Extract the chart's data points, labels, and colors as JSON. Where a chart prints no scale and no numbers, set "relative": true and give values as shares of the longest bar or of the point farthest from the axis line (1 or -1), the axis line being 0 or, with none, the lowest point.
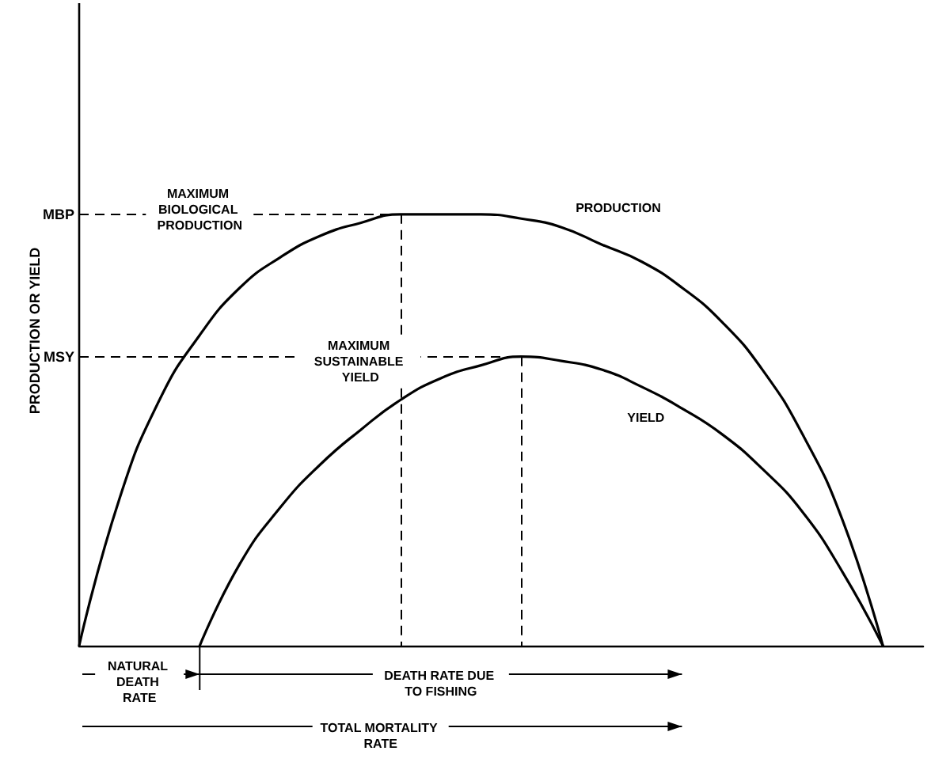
{
  "chart_data": {
    "type": "line",
    "relative": true,
    "ylabel": "PRODUCTION OR YIELD",
    "categories": [
      null,
      null,
      null,
      null,
      null,
      null,
      null,
      null,
      null,
      null,
      null,
      null,
      null,
      null,
      null,
      null,
      null,
      null,
      null,
      null,
      null,
      null
    ],
    "series": [
      {
        "name": "PRODUCTION",
        "color": "#000000",
        "values": [
          0,
          0.34,
          0.57,
          0.72,
          0.83,
          0.9,
          0.95,
          0.98,
          1.0,
          1.0,
          1.0,
          0.99,
          0.97,
          0.93,
          0.89,
          0.83,
          0.75,
          0.64,
          0.49,
          0.29,
          0,
          null
        ]
      },
      {
        "name": "YIELD",
        "color": "#000000",
        "values": [
          null,
          null,
          null,
          0,
          0.19,
          0.32,
          0.42,
          0.5,
          0.57,
          0.62,
          0.65,
          0.67,
          0.66,
          0.64,
          0.6,
          0.55,
          0.49,
          0.41,
          0.31,
          0.17,
          0,
          null
        ]
      }
    ],
    "ref_lines": [
      {
        "axis": "y",
        "value": 1,
        "label": "MBP",
        "line_style": "dashed"
      },
      {
        "axis": "y",
        "value": 0.67,
        "label": "MSY",
        "line_style": "dashed"
      }
    ],
    "annotations": [
      "MAXIMUM BIOLOGICAL PRODUCTION",
      "MAXIMUM SUSTAINABLE YIELD",
      "NATURAL DEATH RATE",
      "DEATH RATE DUE TO FISHING",
      "TOTAL MORTALITY RATE"
    ],
    "marker": "none",
    "line_style": "solid",
    "grid": false,
    "legend": false
  }
}
